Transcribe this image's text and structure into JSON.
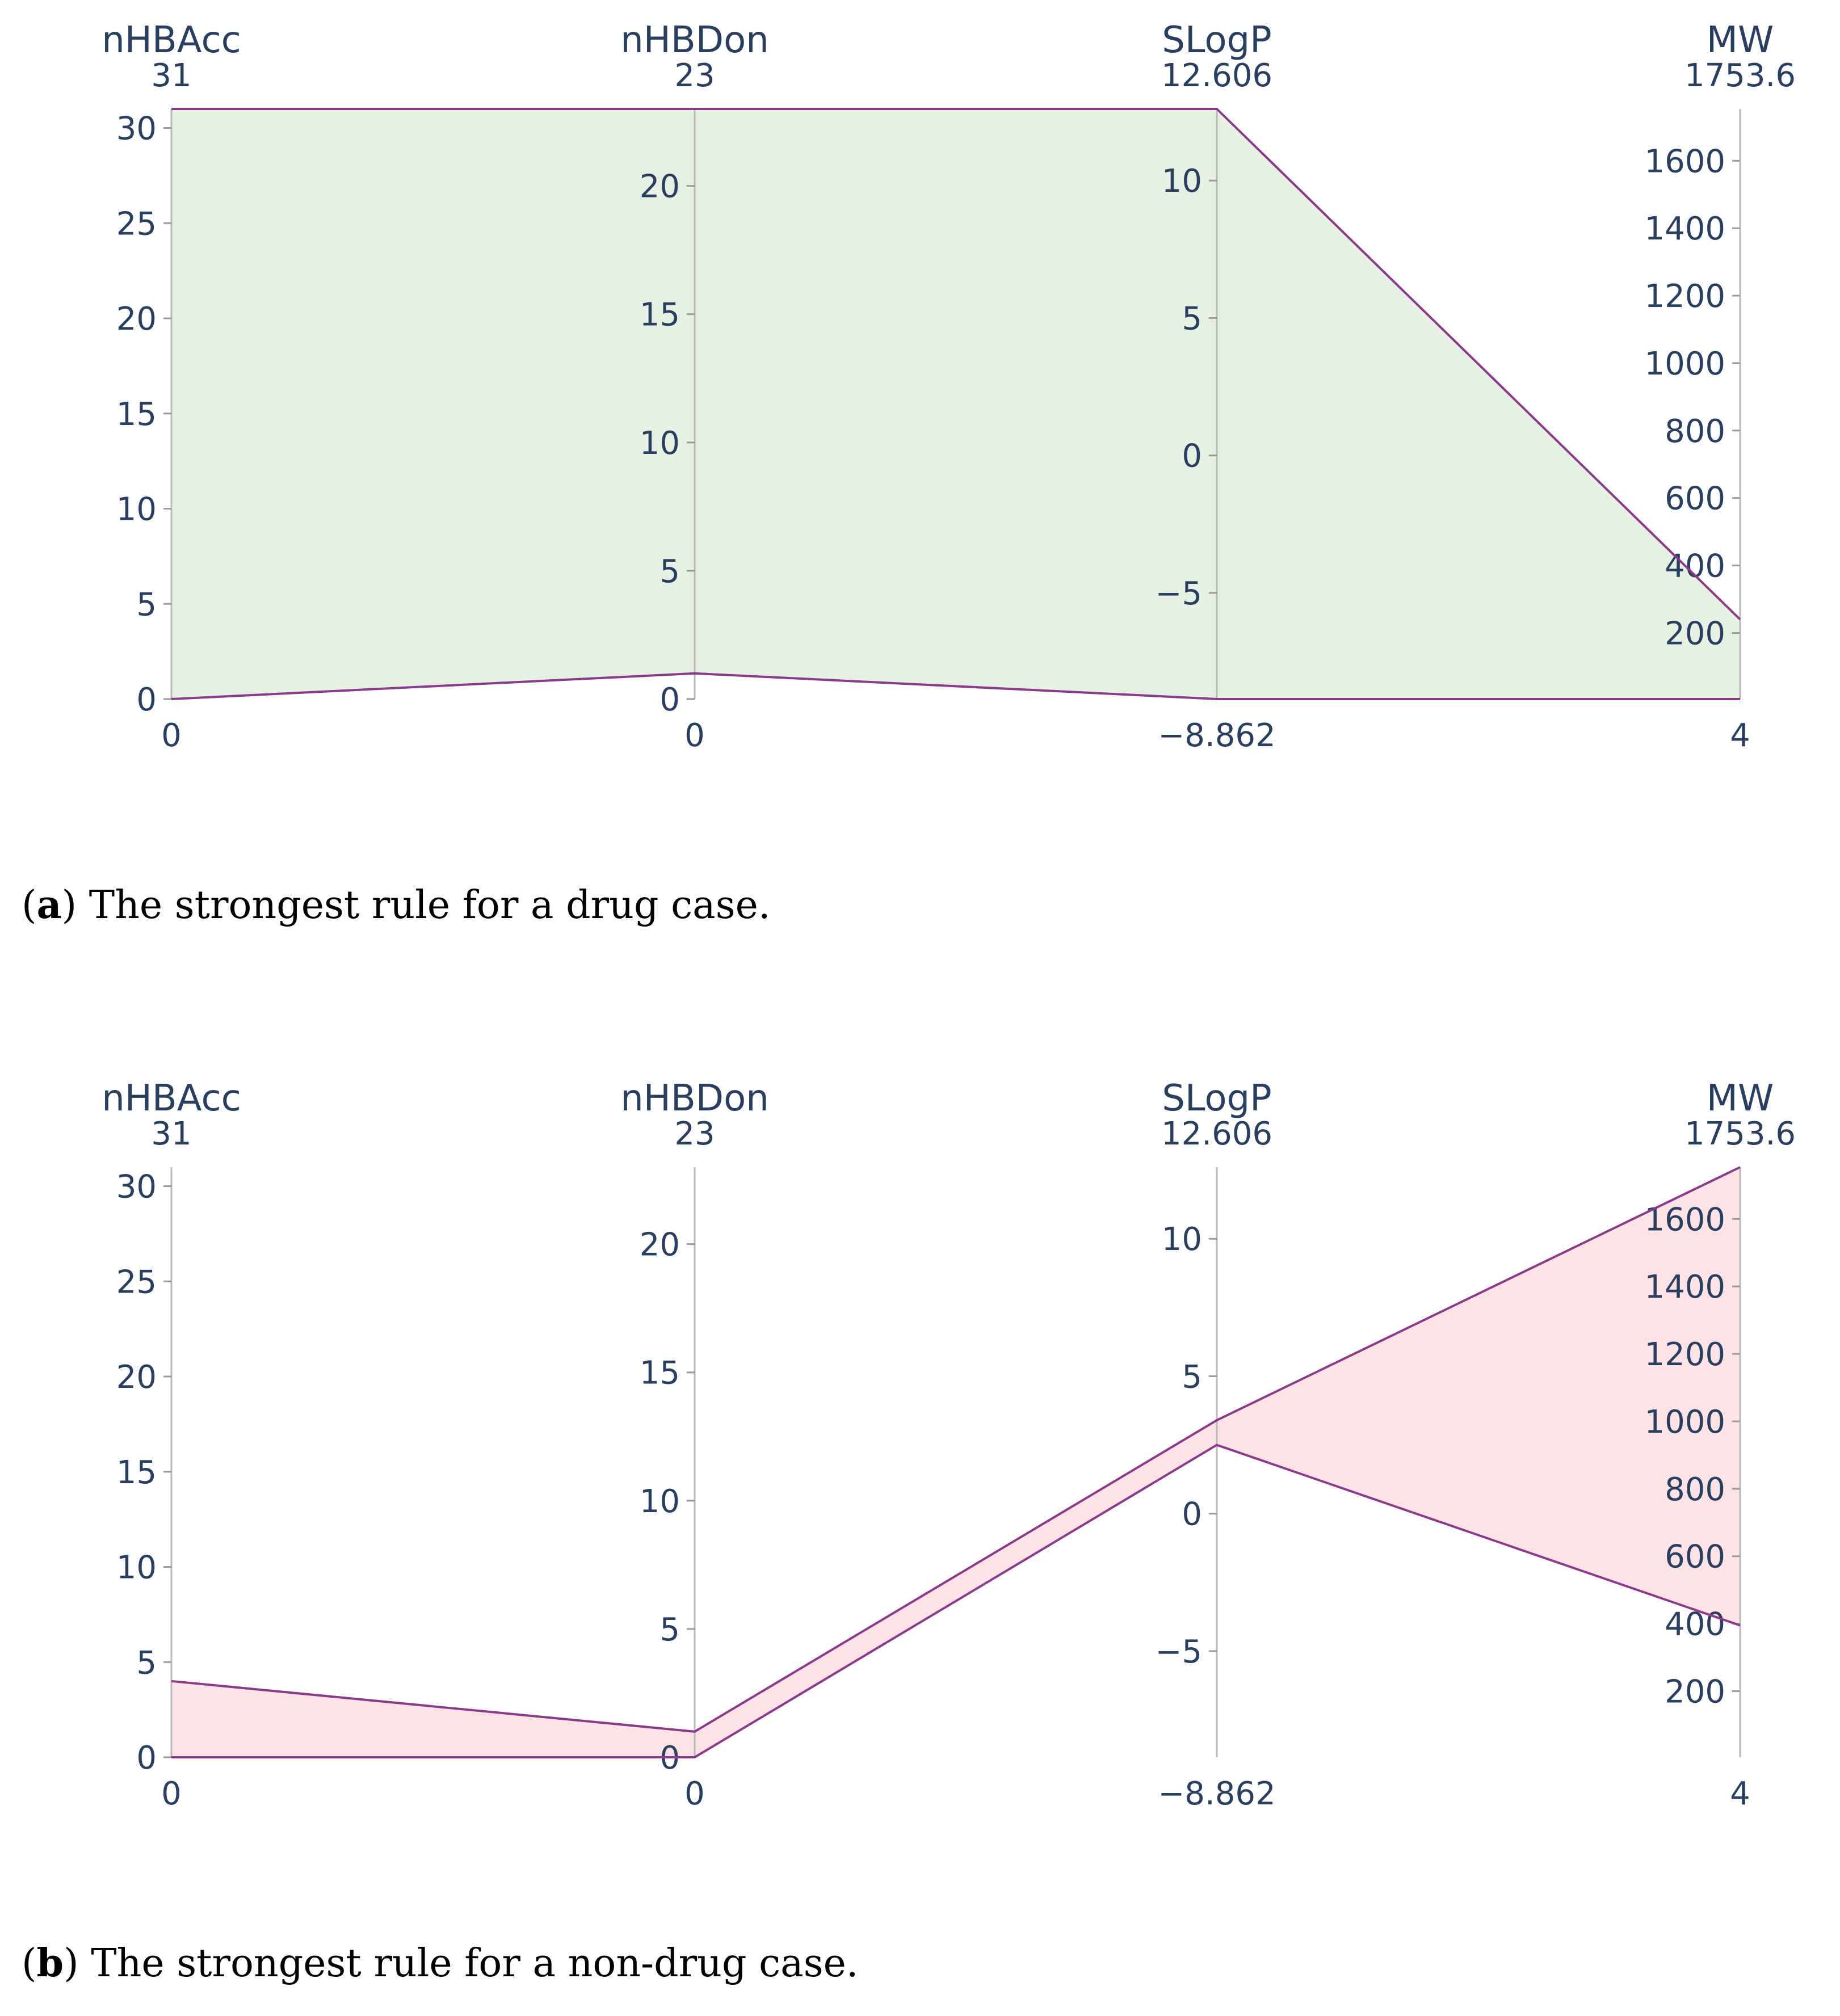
{
  "chart_data": [
    {
      "type": "parallel-coordinates",
      "panel_letter": "a",
      "caption": "The strongest rule for a drug case.",
      "fill_color": "#e6f1e4",
      "line_color": "#8b3a8b",
      "axes": [
        {
          "name": "nHBAcc",
          "min": 0,
          "max": 31,
          "min_label": "0",
          "max_label": "31",
          "ticks": [
            0,
            5,
            10,
            15,
            20,
            25,
            30
          ],
          "tick_labels": [
            "0",
            "5",
            "10",
            "15",
            "20",
            "25",
            "30"
          ]
        },
        {
          "name": "nHBDon",
          "min": 0,
          "max": 23,
          "min_label": "0",
          "max_label": "23",
          "ticks": [
            0,
            5,
            10,
            15,
            20
          ],
          "tick_labels": [
            "0",
            "5",
            "10",
            "15",
            "20"
          ]
        },
        {
          "name": "SLogP",
          "min": -8.862,
          "max": 12.606,
          "min_label": "−8.862",
          "max_label": "12.606",
          "ticks": [
            -5,
            0,
            5,
            10
          ],
          "tick_labels": [
            "−5",
            "0",
            "5",
            "10"
          ]
        },
        {
          "name": "MW",
          "min": 4,
          "max": 1753.6,
          "min_label": "4",
          "max_label": "1753.6",
          "ticks": [
            200,
            400,
            600,
            800,
            1000,
            1200,
            1400,
            1600
          ],
          "tick_labels": [
            "200",
            "400",
            "600",
            "800",
            "1000",
            "1200",
            "1400",
            "1600"
          ]
        }
      ],
      "rule_upper": [
        31,
        23,
        12.606,
        240
      ],
      "rule_lower": [
        0,
        1,
        -8.862,
        4
      ]
    },
    {
      "type": "parallel-coordinates",
      "panel_letter": "b",
      "caption": "The strongest rule for a non-drug case.",
      "fill_color": "#fde3e6",
      "line_color": "#8b3a8b",
      "axes": [
        {
          "name": "nHBAcc",
          "min": 0,
          "max": 31,
          "min_label": "0",
          "max_label": "31",
          "ticks": [
            0,
            5,
            10,
            15,
            20,
            25,
            30
          ],
          "tick_labels": [
            "0",
            "5",
            "10",
            "15",
            "20",
            "25",
            "30"
          ]
        },
        {
          "name": "nHBDon",
          "min": 0,
          "max": 23,
          "min_label": "0",
          "max_label": "23",
          "ticks": [
            0,
            5,
            10,
            15,
            20
          ],
          "tick_labels": [
            "0",
            "5",
            "10",
            "15",
            "20"
          ]
        },
        {
          "name": "SLogP",
          "min": -8.862,
          "max": 12.606,
          "min_label": "−8.862",
          "max_label": "12.606",
          "ticks": [
            -5,
            0,
            5,
            10
          ],
          "tick_labels": [
            "−5",
            "0",
            "5",
            "10"
          ]
        },
        {
          "name": "MW",
          "min": 4,
          "max": 1753.6,
          "min_label": "4",
          "max_label": "1753.6",
          "ticks": [
            200,
            400,
            600,
            800,
            1000,
            1200,
            1400,
            1600
          ],
          "tick_labels": [
            "200",
            "400",
            "600",
            "800",
            "1000",
            "1200",
            "1400",
            "1600"
          ]
        }
      ],
      "rule_upper": [
        4,
        1,
        3.4,
        1753.6
      ],
      "rule_lower": [
        0,
        0,
        2.5,
        395
      ]
    }
  ]
}
